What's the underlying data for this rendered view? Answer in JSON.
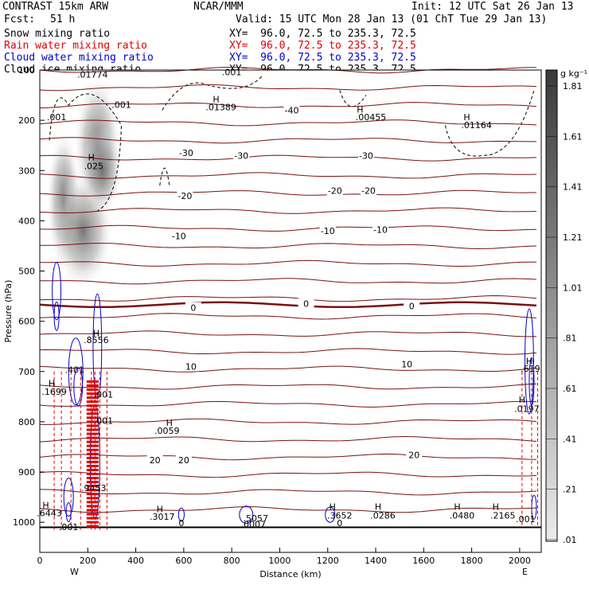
{
  "header": {
    "model": "CONTRAST 15km ARW",
    "center": "NCAR/MMM",
    "init": "Init: 12 UTC Sat 26 Jan 13",
    "fcst_label": "Fcst:",
    "fcst_value": "51 h",
    "valid": "Valid: 15 UTC Mon 28 Jan 13 (01 ChT Tue 29 Jan 13)"
  },
  "fields": [
    {
      "name": "Snow mixing ratio",
      "xy": "XY=  96.0, 72.5 to 235.3, 72.5",
      "color": "#000000"
    },
    {
      "name": "Rain water mixing ratio",
      "xy": "XY=  96.0, 72.5 to 235.3, 72.5",
      "color": "#e00000"
    },
    {
      "name": "Cloud water mixing ratio",
      "xy": "XY=  96.0, 72.5 to 235.3, 72.5",
      "color": "#0000cc"
    },
    {
      "name": "Cloud ice mixing ratio",
      "xy": "XY=  96.0, 72.5 to 235.3, 72.5",
      "color": "#000000"
    }
  ],
  "chart_data": {
    "type": "heatmap",
    "xlabel": "Distance (km)",
    "ylabel": "Pressure (hPa)",
    "xlim": [
      0,
      2090
    ],
    "ylim": [
      1060,
      100
    ],
    "x_ticks": [
      0,
      200,
      400,
      600,
      800,
      1000,
      1200,
      1400,
      1600,
      1800,
      2000
    ],
    "y_ticks": [
      100,
      200,
      300,
      400,
      500,
      600,
      700,
      800,
      900,
      1000
    ],
    "x_end_labels": [
      "W",
      "E"
    ],
    "colorbar": {
      "unit": "g kg⁻¹",
      "ticks": [
        ".01",
        ".21",
        ".41",
        ".61",
        ".81",
        "1.01",
        "1.21",
        "1.41",
        "1.61",
        "1.81"
      ]
    },
    "temperature_contours": [
      {
        "label": "-40",
        "x": 1050,
        "p": 180
      },
      {
        "label": "-30",
        "x": 610,
        "p": 265
      },
      {
        "label": "-30",
        "x": 840,
        "p": 270
      },
      {
        "label": "-30",
        "x": 1360,
        "p": 270
      },
      {
        "label": "-20",
        "x": 605,
        "p": 350
      },
      {
        "label": "-20",
        "x": 1230,
        "p": 340
      },
      {
        "label": "-20",
        "x": 1370,
        "p": 340
      },
      {
        "label": "-10",
        "x": 580,
        "p": 430
      },
      {
        "label": "-10",
        "x": 1200,
        "p": 420
      },
      {
        "label": "-10",
        "x": 1420,
        "p": 418
      },
      {
        "label": "0",
        "x": 640,
        "p": 573
      },
      {
        "label": "0",
        "x": 1110,
        "p": 565
      },
      {
        "label": "0",
        "x": 1550,
        "p": 570
      },
      {
        "label": "10",
        "x": 630,
        "p": 690
      },
      {
        "label": "10",
        "x": 1530,
        "p": 685
      },
      {
        "label": "20",
        "x": 480,
        "p": 876
      },
      {
        "label": "20",
        "x": 600,
        "p": 876
      },
      {
        "label": "20",
        "x": 1560,
        "p": 866
      }
    ],
    "maxima_labels": [
      {
        "label": ".01774",
        "x": 220,
        "p": 115,
        "color": "#000000"
      },
      {
        "label": ".001",
        "x": 800,
        "p": 110,
        "color": "#000000"
      },
      {
        "label": ".001",
        "x": 340,
        "p": 175,
        "color": "#000000"
      },
      {
        "label": ".001",
        "x": 70,
        "p": 200,
        "color": "#000000"
      },
      {
        "label": "H",
        "x": 735,
        "p": 164,
        "color": "#000000"
      },
      {
        "label": ".01389",
        "x": 755,
        "p": 180,
        "color": "#000000"
      },
      {
        "label": "H",
        "x": 1335,
        "p": 185,
        "color": "#000000"
      },
      {
        "label": ".00455",
        "x": 1380,
        "p": 200,
        "color": "#000000"
      },
      {
        "label": "H",
        "x": 1780,
        "p": 200,
        "color": "#000000"
      },
      {
        "label": ".01164",
        "x": 1820,
        "p": 216,
        "color": "#000000"
      },
      {
        "label": "H",
        "x": 215,
        "p": 280,
        "color": "#000000"
      },
      {
        "label": ".025",
        "x": 225,
        "p": 297,
        "color": "#000000"
      },
      {
        "label": "H",
        "x": 235,
        "p": 630,
        "color": "#0000cc"
      },
      {
        "label": ".8556",
        "x": 235,
        "p": 643,
        "color": "#0000cc"
      },
      {
        "label": ".401",
        "x": 145,
        "p": 703,
        "color": "#0000cc"
      },
      {
        "label": "H",
        "x": 50,
        "p": 730,
        "color": "#e00000"
      },
      {
        "label": ".1699",
        "x": 60,
        "p": 746,
        "color": "#e00000"
      },
      {
        "label": ".001",
        "x": 265,
        "p": 752,
        "color": "#e00000"
      },
      {
        "label": ".001",
        "x": 265,
        "p": 804,
        "color": "#0000cc"
      },
      {
        "label": "H",
        "x": 540,
        "p": 808,
        "color": "#0000cc"
      },
      {
        "label": ".0059",
        "x": 530,
        "p": 824,
        "color": "#0000cc"
      },
      {
        "label": ".9453",
        "x": 225,
        "p": 938,
        "color": "#e00000"
      },
      {
        "label": "H",
        "x": 25,
        "p": 972,
        "color": "#0000cc"
      },
      {
        "label": ".6443",
        "x": 40,
        "p": 988,
        "color": "#0000cc"
      },
      {
        "label": ".001",
        "x": 120,
        "p": 1016,
        "color": "#e00000"
      },
      {
        "label": "H",
        "x": 500,
        "p": 980,
        "color": "#0000cc"
      },
      {
        "label": ".3017",
        "x": 510,
        "p": 995,
        "color": "#0000cc"
      },
      {
        "label": "0",
        "x": 590,
        "p": 1008,
        "color": "#e00000"
      },
      {
        "label": ".5057",
        "x": 900,
        "p": 998,
        "color": "#0000cc"
      },
      {
        "label": ".0007",
        "x": 890,
        "p": 1010,
        "color": "#e00000"
      },
      {
        "label": "H",
        "x": 1220,
        "p": 975,
        "color": "#0000cc"
      },
      {
        "label": ".3652",
        "x": 1250,
        "p": 993,
        "color": "#0000cc"
      },
      {
        "label": "0",
        "x": 1250,
        "p": 1008,
        "color": "#e00000"
      },
      {
        "label": "H",
        "x": 1410,
        "p": 975,
        "color": "#0000cc"
      },
      {
        "label": ".0286",
        "x": 1430,
        "p": 993,
        "color": "#0000cc"
      },
      {
        "label": "H",
        "x": 1740,
        "p": 975,
        "color": "#0000cc"
      },
      {
        "label": ".0480",
        "x": 1760,
        "p": 993,
        "color": "#0000cc"
      },
      {
        "label": "H",
        "x": 1900,
        "p": 975,
        "color": "#0000cc"
      },
      {
        "label": ".2165",
        "x": 1930,
        "p": 993,
        "color": "#0000cc"
      },
      {
        "label": ".001",
        "x": 2025,
        "p": 1000,
        "color": "#e00000"
      },
      {
        "label": "H",
        "x": 2040,
        "p": 685,
        "color": "#0000cc"
      },
      {
        "label": ".619",
        "x": 2045,
        "p": 700,
        "color": "#0000cc"
      },
      {
        "label": "H",
        "x": 2010,
        "p": 762,
        "color": "#e00000"
      },
      {
        "label": ".0197",
        "x": 2030,
        "p": 780,
        "color": "#e00000"
      }
    ]
  }
}
